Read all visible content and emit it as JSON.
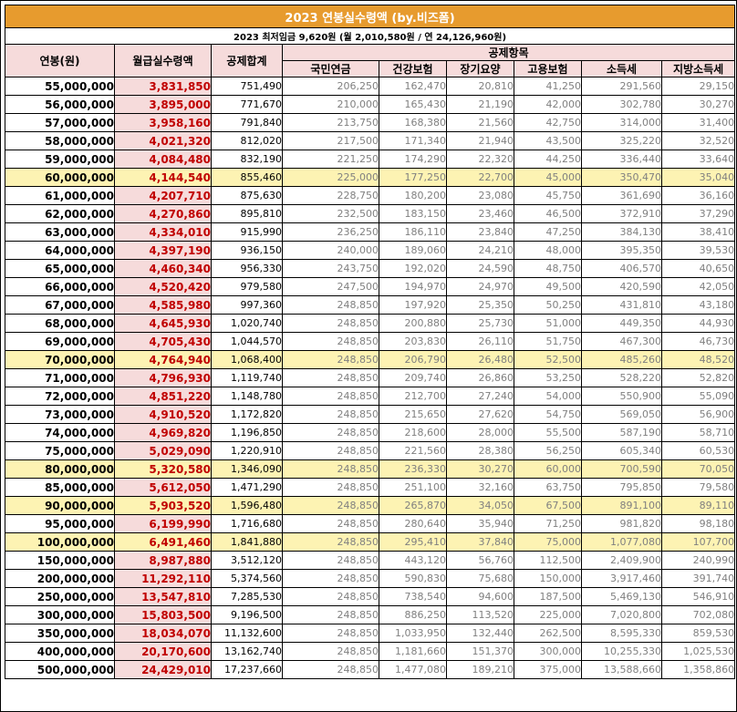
{
  "title": "2023 연봉실수령액 (by.비즈폼)",
  "subtitle": "2023 최저임금 9,620원 (월 2,010,580원 / 연 24,126,960원)",
  "headers": {
    "annual": "연봉(원)",
    "monthly": "월급실수령액",
    "total": "공제합계",
    "group": "공제항목",
    "pension": "국민연금",
    "health": "건강보험",
    "ltc": "장기요양",
    "employment": "고용보험",
    "income_tax": "소득세",
    "local_tax": "지방소득세"
  },
  "colors": {
    "title_bg": "#e79b2e",
    "header_bg": "#f6dbdb",
    "highlight_bg": "#fdf3b3",
    "monthly_text": "#c00000"
  },
  "rows": [
    {
      "annual": "55,000,000",
      "monthly": "3,831,850",
      "total": "751,490",
      "pension": "206,250",
      "health": "162,470",
      "ltc": "20,810",
      "employment": "41,250",
      "income_tax": "291,560",
      "local_tax": "29,150",
      "highlight": false
    },
    {
      "annual": "56,000,000",
      "monthly": "3,895,000",
      "total": "771,670",
      "pension": "210,000",
      "health": "165,430",
      "ltc": "21,190",
      "employment": "42,000",
      "income_tax": "302,780",
      "local_tax": "30,270",
      "highlight": false
    },
    {
      "annual": "57,000,000",
      "monthly": "3,958,160",
      "total": "791,840",
      "pension": "213,750",
      "health": "168,380",
      "ltc": "21,560",
      "employment": "42,750",
      "income_tax": "314,000",
      "local_tax": "31,400",
      "highlight": false
    },
    {
      "annual": "58,000,000",
      "monthly": "4,021,320",
      "total": "812,020",
      "pension": "217,500",
      "health": "171,340",
      "ltc": "21,940",
      "employment": "43,500",
      "income_tax": "325,220",
      "local_tax": "32,520",
      "highlight": false
    },
    {
      "annual": "59,000,000",
      "monthly": "4,084,480",
      "total": "832,190",
      "pension": "221,250",
      "health": "174,290",
      "ltc": "22,320",
      "employment": "44,250",
      "income_tax": "336,440",
      "local_tax": "33,640",
      "highlight": false
    },
    {
      "annual": "60,000,000",
      "monthly": "4,144,540",
      "total": "855,460",
      "pension": "225,000",
      "health": "177,250",
      "ltc": "22,700",
      "employment": "45,000",
      "income_tax": "350,470",
      "local_tax": "35,040",
      "highlight": true
    },
    {
      "annual": "61,000,000",
      "monthly": "4,207,710",
      "total": "875,630",
      "pension": "228,750",
      "health": "180,200",
      "ltc": "23,080",
      "employment": "45,750",
      "income_tax": "361,690",
      "local_tax": "36,160",
      "highlight": false
    },
    {
      "annual": "62,000,000",
      "monthly": "4,270,860",
      "total": "895,810",
      "pension": "232,500",
      "health": "183,150",
      "ltc": "23,460",
      "employment": "46,500",
      "income_tax": "372,910",
      "local_tax": "37,290",
      "highlight": false
    },
    {
      "annual": "63,000,000",
      "monthly": "4,334,010",
      "total": "915,990",
      "pension": "236,250",
      "health": "186,110",
      "ltc": "23,840",
      "employment": "47,250",
      "income_tax": "384,130",
      "local_tax": "38,410",
      "highlight": false
    },
    {
      "annual": "64,000,000",
      "monthly": "4,397,190",
      "total": "936,150",
      "pension": "240,000",
      "health": "189,060",
      "ltc": "24,210",
      "employment": "48,000",
      "income_tax": "395,350",
      "local_tax": "39,530",
      "highlight": false
    },
    {
      "annual": "65,000,000",
      "monthly": "4,460,340",
      "total": "956,330",
      "pension": "243,750",
      "health": "192,020",
      "ltc": "24,590",
      "employment": "48,750",
      "income_tax": "406,570",
      "local_tax": "40,650",
      "highlight": false
    },
    {
      "annual": "66,000,000",
      "monthly": "4,520,420",
      "total": "979,580",
      "pension": "247,500",
      "health": "194,970",
      "ltc": "24,970",
      "employment": "49,500",
      "income_tax": "420,590",
      "local_tax": "42,050",
      "highlight": false
    },
    {
      "annual": "67,000,000",
      "monthly": "4,585,980",
      "total": "997,360",
      "pension": "248,850",
      "health": "197,920",
      "ltc": "25,350",
      "employment": "50,250",
      "income_tax": "431,810",
      "local_tax": "43,180",
      "highlight": false
    },
    {
      "annual": "68,000,000",
      "monthly": "4,645,930",
      "total": "1,020,740",
      "pension": "248,850",
      "health": "200,880",
      "ltc": "25,730",
      "employment": "51,000",
      "income_tax": "449,350",
      "local_tax": "44,930",
      "highlight": false
    },
    {
      "annual": "69,000,000",
      "monthly": "4,705,430",
      "total": "1,044,570",
      "pension": "248,850",
      "health": "203,830",
      "ltc": "26,110",
      "employment": "51,750",
      "income_tax": "467,300",
      "local_tax": "46,730",
      "highlight": false
    },
    {
      "annual": "70,000,000",
      "monthly": "4,764,940",
      "total": "1,068,400",
      "pension": "248,850",
      "health": "206,790",
      "ltc": "26,480",
      "employment": "52,500",
      "income_tax": "485,260",
      "local_tax": "48,520",
      "highlight": true
    },
    {
      "annual": "71,000,000",
      "monthly": "4,796,930",
      "total": "1,119,740",
      "pension": "248,850",
      "health": "209,740",
      "ltc": "26,860",
      "employment": "53,250",
      "income_tax": "528,220",
      "local_tax": "52,820",
      "highlight": false
    },
    {
      "annual": "72,000,000",
      "monthly": "4,851,220",
      "total": "1,148,780",
      "pension": "248,850",
      "health": "212,700",
      "ltc": "27,240",
      "employment": "54,000",
      "income_tax": "550,900",
      "local_tax": "55,090",
      "highlight": false
    },
    {
      "annual": "73,000,000",
      "monthly": "4,910,520",
      "total": "1,172,820",
      "pension": "248,850",
      "health": "215,650",
      "ltc": "27,620",
      "employment": "54,750",
      "income_tax": "569,050",
      "local_tax": "56,900",
      "highlight": false
    },
    {
      "annual": "74,000,000",
      "monthly": "4,969,820",
      "total": "1,196,850",
      "pension": "248,850",
      "health": "218,600",
      "ltc": "28,000",
      "employment": "55,500",
      "income_tax": "587,190",
      "local_tax": "58,710",
      "highlight": false
    },
    {
      "annual": "75,000,000",
      "monthly": "5,029,090",
      "total": "1,220,910",
      "pension": "248,850",
      "health": "221,560",
      "ltc": "28,380",
      "employment": "56,250",
      "income_tax": "605,340",
      "local_tax": "60,530",
      "highlight": false
    },
    {
      "annual": "80,000,000",
      "monthly": "5,320,580",
      "total": "1,346,090",
      "pension": "248,850",
      "health": "236,330",
      "ltc": "30,270",
      "employment": "60,000",
      "income_tax": "700,590",
      "local_tax": "70,050",
      "highlight": true
    },
    {
      "annual": "85,000,000",
      "monthly": "5,612,050",
      "total": "1,471,290",
      "pension": "248,850",
      "health": "251,100",
      "ltc": "32,160",
      "employment": "63,750",
      "income_tax": "795,850",
      "local_tax": "79,580",
      "highlight": false
    },
    {
      "annual": "90,000,000",
      "monthly": "5,903,520",
      "total": "1,596,480",
      "pension": "248,850",
      "health": "265,870",
      "ltc": "34,050",
      "employment": "67,500",
      "income_tax": "891,100",
      "local_tax": "89,110",
      "highlight": true
    },
    {
      "annual": "95,000,000",
      "monthly": "6,199,990",
      "total": "1,716,680",
      "pension": "248,850",
      "health": "280,640",
      "ltc": "35,940",
      "employment": "71,250",
      "income_tax": "981,820",
      "local_tax": "98,180",
      "highlight": false
    },
    {
      "annual": "100,000,000",
      "monthly": "6,491,460",
      "total": "1,841,880",
      "pension": "248,850",
      "health": "295,410",
      "ltc": "37,840",
      "employment": "75,000",
      "income_tax": "1,077,080",
      "local_tax": "107,700",
      "highlight": true
    },
    {
      "annual": "150,000,000",
      "monthly": "8,987,880",
      "total": "3,512,120",
      "pension": "248,850",
      "health": "443,120",
      "ltc": "56,760",
      "employment": "112,500",
      "income_tax": "2,409,900",
      "local_tax": "240,990",
      "highlight": false
    },
    {
      "annual": "200,000,000",
      "monthly": "11,292,110",
      "total": "5,374,560",
      "pension": "248,850",
      "health": "590,830",
      "ltc": "75,680",
      "employment": "150,000",
      "income_tax": "3,917,460",
      "local_tax": "391,740",
      "highlight": false
    },
    {
      "annual": "250,000,000",
      "monthly": "13,547,810",
      "total": "7,285,530",
      "pension": "248,850",
      "health": "738,540",
      "ltc": "94,600",
      "employment": "187,500",
      "income_tax": "5,469,130",
      "local_tax": "546,910",
      "highlight": false
    },
    {
      "annual": "300,000,000",
      "monthly": "15,803,500",
      "total": "9,196,500",
      "pension": "248,850",
      "health": "886,250",
      "ltc": "113,520",
      "employment": "225,000",
      "income_tax": "7,020,800",
      "local_tax": "702,080",
      "highlight": false
    },
    {
      "annual": "350,000,000",
      "monthly": "18,034,070",
      "total": "11,132,600",
      "pension": "248,850",
      "health": "1,033,950",
      "ltc": "132,440",
      "employment": "262,500",
      "income_tax": "8,595,330",
      "local_tax": "859,530",
      "highlight": false
    },
    {
      "annual": "400,000,000",
      "monthly": "20,170,600",
      "total": "13,162,740",
      "pension": "248,850",
      "health": "1,181,660",
      "ltc": "151,370",
      "employment": "300,000",
      "income_tax": "10,255,330",
      "local_tax": "1,025,530",
      "highlight": false
    },
    {
      "annual": "500,000,000",
      "monthly": "24,429,010",
      "total": "17,237,660",
      "pension": "248,850",
      "health": "1,477,080",
      "ltc": "189,210",
      "employment": "375,000",
      "income_tax": "13,588,660",
      "local_tax": "1,358,860",
      "highlight": false
    }
  ]
}
